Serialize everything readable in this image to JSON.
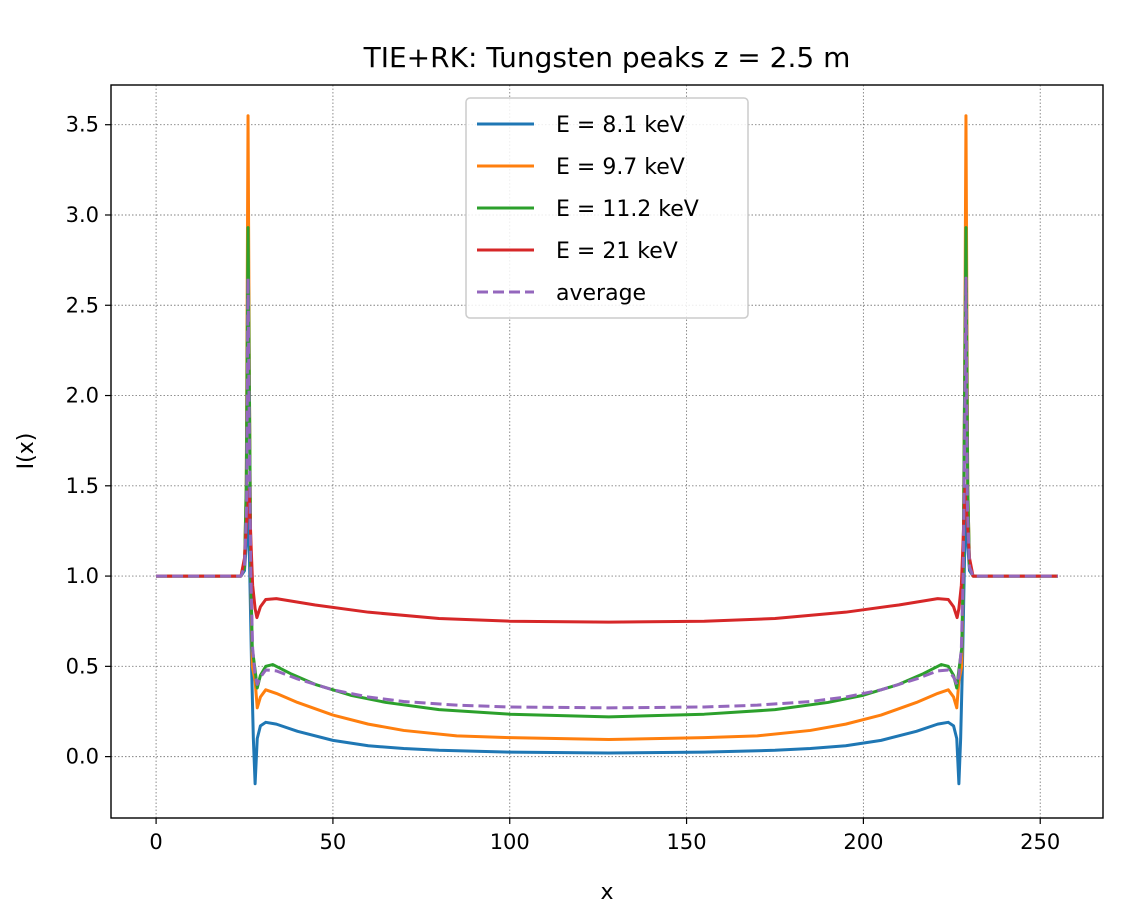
{
  "chart_data": {
    "type": "line",
    "title": "TIE+RK: Tungsten peaks  z = 2.5 m",
    "xlabel": "x",
    "ylabel": "I(x)",
    "xlim": [
      -12.75,
      267.75
    ],
    "ylim": [
      -0.34,
      3.72
    ],
    "xticks": [
      0,
      50,
      100,
      150,
      200,
      250
    ],
    "yticks": [
      0.0,
      0.5,
      1.0,
      1.5,
      2.0,
      2.5,
      3.0,
      3.5
    ],
    "xtick_labels": [
      "0",
      "50",
      "100",
      "150",
      "200",
      "250"
    ],
    "ytick_labels": [
      "0.0",
      "0.5",
      "1.0",
      "1.5",
      "2.0",
      "2.5",
      "3.0",
      "3.5"
    ],
    "grid": true,
    "legend_position": "top-center",
    "series": [
      {
        "name": "E = 8.1 keV",
        "color": "#1f77b4",
        "dash": "solid",
        "points": [
          [
            0,
            1.0
          ],
          [
            24,
            1.0
          ],
          [
            25,
            1.03
          ],
          [
            25.6,
            1.2
          ],
          [
            26,
            1.5
          ],
          [
            26.5,
            1.0
          ],
          [
            27,
            0.5
          ],
          [
            27.5,
            0.1
          ],
          [
            28,
            -0.15
          ],
          [
            28.6,
            0.1
          ],
          [
            29.5,
            0.17
          ],
          [
            31,
            0.19
          ],
          [
            34,
            0.18
          ],
          [
            40,
            0.14
          ],
          [
            50,
            0.09
          ],
          [
            60,
            0.06
          ],
          [
            70,
            0.045
          ],
          [
            80,
            0.035
          ],
          [
            100,
            0.025
          ],
          [
            128,
            0.02
          ],
          [
            155,
            0.025
          ],
          [
            175,
            0.035
          ],
          [
            185,
            0.045
          ],
          [
            195,
            0.06
          ],
          [
            205,
            0.09
          ],
          [
            215,
            0.14
          ],
          [
            221,
            0.18
          ],
          [
            224,
            0.19
          ],
          [
            225.5,
            0.17
          ],
          [
            226.4,
            0.1
          ],
          [
            227,
            -0.15
          ],
          [
            227.5,
            0.1
          ],
          [
            228,
            0.5
          ],
          [
            228.5,
            1.0
          ],
          [
            229,
            1.5
          ],
          [
            229.4,
            1.2
          ],
          [
            230,
            1.03
          ],
          [
            231,
            1.0
          ],
          [
            255,
            1.0
          ]
        ]
      },
      {
        "name": "E = 9.7 keV",
        "color": "#ff7f0e",
        "dash": "solid",
        "points": [
          [
            0,
            1.0
          ],
          [
            24,
            1.0
          ],
          [
            25,
            1.05
          ],
          [
            25.5,
            1.5
          ],
          [
            26,
            3.55
          ],
          [
            26.4,
            2.0
          ],
          [
            26.8,
            1.0
          ],
          [
            27.2,
            0.5
          ],
          [
            28,
            0.42
          ],
          [
            28.6,
            0.27
          ],
          [
            29.5,
            0.33
          ],
          [
            31,
            0.37
          ],
          [
            34,
            0.35
          ],
          [
            40,
            0.3
          ],
          [
            50,
            0.23
          ],
          [
            60,
            0.18
          ],
          [
            70,
            0.145
          ],
          [
            85,
            0.115
          ],
          [
            100,
            0.105
          ],
          [
            128,
            0.095
          ],
          [
            155,
            0.105
          ],
          [
            170,
            0.115
          ],
          [
            185,
            0.145
          ],
          [
            195,
            0.18
          ],
          [
            205,
            0.23
          ],
          [
            215,
            0.3
          ],
          [
            221,
            0.35
          ],
          [
            224,
            0.37
          ],
          [
            225.5,
            0.33
          ],
          [
            226.4,
            0.27
          ],
          [
            227,
            0.42
          ],
          [
            227.8,
            0.5
          ],
          [
            228.2,
            1.0
          ],
          [
            228.6,
            2.0
          ],
          [
            229,
            3.55
          ],
          [
            229.5,
            1.5
          ],
          [
            230,
            1.05
          ],
          [
            231,
            1.0
          ],
          [
            255,
            1.0
          ]
        ]
      },
      {
        "name": "E = 11.2 keV",
        "color": "#2ca02c",
        "dash": "solid",
        "points": [
          [
            0,
            1.0
          ],
          [
            24,
            1.0
          ],
          [
            25,
            1.05
          ],
          [
            25.5,
            1.5
          ],
          [
            26,
            2.93
          ],
          [
            26.4,
            2.0
          ],
          [
            26.8,
            1.0
          ],
          [
            27.2,
            0.6
          ],
          [
            28,
            0.48
          ],
          [
            28.6,
            0.38
          ],
          [
            29.5,
            0.45
          ],
          [
            31,
            0.5
          ],
          [
            33,
            0.51
          ],
          [
            38,
            0.46
          ],
          [
            45,
            0.4
          ],
          [
            55,
            0.34
          ],
          [
            65,
            0.3
          ],
          [
            80,
            0.26
          ],
          [
            100,
            0.235
          ],
          [
            128,
            0.22
          ],
          [
            155,
            0.235
          ],
          [
            175,
            0.26
          ],
          [
            190,
            0.3
          ],
          [
            200,
            0.34
          ],
          [
            210,
            0.4
          ],
          [
            217,
            0.46
          ],
          [
            222,
            0.51
          ],
          [
            224,
            0.5
          ],
          [
            225.5,
            0.45
          ],
          [
            226.4,
            0.38
          ],
          [
            227,
            0.48
          ],
          [
            227.8,
            0.6
          ],
          [
            228.2,
            1.0
          ],
          [
            228.6,
            2.0
          ],
          [
            229,
            2.93
          ],
          [
            229.5,
            1.5
          ],
          [
            230,
            1.05
          ],
          [
            231,
            1.0
          ],
          [
            255,
            1.0
          ]
        ]
      },
      {
        "name": "E = 21 keV",
        "color": "#d62728",
        "dash": "solid",
        "points": [
          [
            0,
            1.0
          ],
          [
            24,
            1.0
          ],
          [
            25,
            1.1
          ],
          [
            25.6,
            1.3
          ],
          [
            26.3,
            1.48
          ],
          [
            26.8,
            1.2
          ],
          [
            27.3,
            0.95
          ],
          [
            28,
            0.82
          ],
          [
            28.5,
            0.77
          ],
          [
            29.5,
            0.83
          ],
          [
            31,
            0.87
          ],
          [
            34,
            0.875
          ],
          [
            45,
            0.84
          ],
          [
            60,
            0.8
          ],
          [
            80,
            0.765
          ],
          [
            100,
            0.75
          ],
          [
            128,
            0.745
          ],
          [
            155,
            0.75
          ],
          [
            175,
            0.765
          ],
          [
            195,
            0.8
          ],
          [
            210,
            0.84
          ],
          [
            221,
            0.875
          ],
          [
            224,
            0.87
          ],
          [
            225.5,
            0.83
          ],
          [
            226.5,
            0.77
          ],
          [
            227,
            0.82
          ],
          [
            227.7,
            0.95
          ],
          [
            228.2,
            1.2
          ],
          [
            228.7,
            1.48
          ],
          [
            229.4,
            1.3
          ],
          [
            230,
            1.1
          ],
          [
            231,
            1.0
          ],
          [
            255,
            1.0
          ]
        ]
      },
      {
        "name": "average",
        "color": "#9467bd",
        "dash": "dashed",
        "points": [
          [
            0,
            1.0
          ],
          [
            24,
            1.0
          ],
          [
            25,
            1.05
          ],
          [
            25.6,
            1.4
          ],
          [
            26,
            2.65
          ],
          [
            26.4,
            1.7
          ],
          [
            26.8,
            1.0
          ],
          [
            27.3,
            0.6
          ],
          [
            28,
            0.45
          ],
          [
            28.6,
            0.4
          ],
          [
            29.5,
            0.44
          ],
          [
            31,
            0.48
          ],
          [
            34,
            0.475
          ],
          [
            40,
            0.43
          ],
          [
            50,
            0.37
          ],
          [
            60,
            0.33
          ],
          [
            70,
            0.305
          ],
          [
            85,
            0.285
          ],
          [
            100,
            0.275
          ],
          [
            128,
            0.27
          ],
          [
            155,
            0.275
          ],
          [
            170,
            0.285
          ],
          [
            185,
            0.305
          ],
          [
            195,
            0.33
          ],
          [
            205,
            0.37
          ],
          [
            215,
            0.43
          ],
          [
            221,
            0.475
          ],
          [
            224,
            0.48
          ],
          [
            225.5,
            0.44
          ],
          [
            226.4,
            0.4
          ],
          [
            227,
            0.45
          ],
          [
            227.7,
            0.6
          ],
          [
            228.2,
            1.0
          ],
          [
            228.6,
            1.7
          ],
          [
            229,
            2.65
          ],
          [
            229.4,
            1.4
          ],
          [
            230,
            1.05
          ],
          [
            231,
            1.0
          ],
          [
            255,
            1.0
          ]
        ]
      }
    ]
  }
}
